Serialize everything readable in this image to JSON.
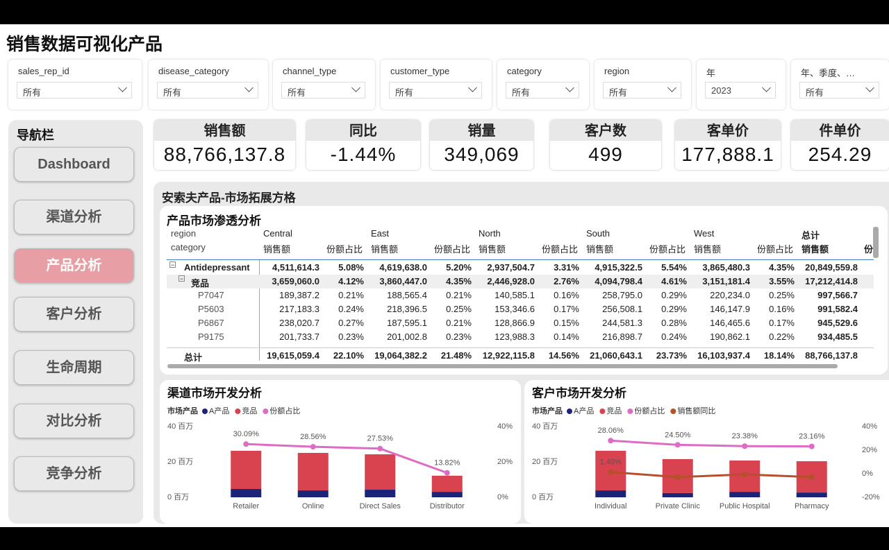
{
  "header": {
    "title": "销售数据可视化产品"
  },
  "filters": [
    {
      "label": "sales_rep_id",
      "value": "所有"
    },
    {
      "label": "disease_category",
      "value": "所有"
    },
    {
      "label": "channel_type",
      "value": "所有"
    },
    {
      "label": "customer_type",
      "value": "所有"
    },
    {
      "label": "category",
      "value": "所有"
    },
    {
      "label": "region",
      "value": "所有"
    },
    {
      "label": "年",
      "value": "2023"
    },
    {
      "label": "年、季度、…",
      "value": "所有"
    }
  ],
  "nav": {
    "title": "导航栏",
    "items": [
      "Dashboard",
      "渠道分析",
      "产品分析",
      "客户分析",
      "生命周期",
      "对比分析",
      "竞争分析"
    ],
    "active": "产品分析"
  },
  "kpis": [
    {
      "label": "销售额",
      "value": "88,766,137.8"
    },
    {
      "label": "同比",
      "value": "-1.44%"
    },
    {
      "label": "销量",
      "value": "349,069"
    },
    {
      "label": "客户数",
      "value": "499"
    },
    {
      "label": "客单价",
      "value": "177,888.1"
    },
    {
      "label": "件单价",
      "value": "254.29"
    }
  ],
  "section": {
    "title": "安索夫产品-市场拓展方格"
  },
  "table": {
    "title": "产品市场渗透分析",
    "row_header": "region",
    "col_header": "category",
    "regions": [
      "Central",
      "East",
      "North",
      "South",
      "West",
      "总计"
    ],
    "measures": [
      "销售额",
      "份额占比"
    ],
    "cut_header": "份",
    "rows": [
      {
        "label": "Antidepressant",
        "values": [
          "4,511,614.3",
          "5.08%",
          "4,619,638.0",
          "5.20%",
          "2,937,504.7",
          "3.31%",
          "4,915,322.5",
          "5.54%",
          "3,865,480.3",
          "4.35%",
          "20,849,559.8"
        ]
      },
      {
        "label": "竞品",
        "values": [
          "3,659,060.0",
          "4.12%",
          "3,860,447.0",
          "4.35%",
          "2,446,928.0",
          "2.76%",
          "4,094,798.4",
          "4.61%",
          "3,151,181.4",
          "3.55%",
          "17,212,414.8"
        ]
      },
      {
        "label": "P7047",
        "values": [
          "189,387.2",
          "0.21%",
          "188,565.4",
          "0.21%",
          "140,585.1",
          "0.16%",
          "258,795.0",
          "0.29%",
          "220,234.0",
          "0.25%",
          "997,566.7"
        ]
      },
      {
        "label": "P5603",
        "values": [
          "217,183.3",
          "0.24%",
          "218,396.5",
          "0.25%",
          "153,346.6",
          "0.17%",
          "256,508.1",
          "0.29%",
          "146,147.9",
          "0.16%",
          "991,582.4"
        ]
      },
      {
        "label": "P6867",
        "values": [
          "238,020.7",
          "0.27%",
          "187,595.1",
          "0.21%",
          "128,866.9",
          "0.15%",
          "244,581.3",
          "0.28%",
          "146,465.6",
          "0.17%",
          "945,529.6"
        ]
      },
      {
        "label": "P9175",
        "values": [
          "201,733.7",
          "0.23%",
          "201,002.8",
          "0.23%",
          "123,988.3",
          "0.14%",
          "216,898.7",
          "0.24%",
          "190,862.1",
          "0.22%",
          "934,485.5"
        ]
      }
    ],
    "total": {
      "label": "总计",
      "values": [
        "19,615,059.4",
        "22.10%",
        "19,064,382.2",
        "21.48%",
        "12,922,115.8",
        "14.56%",
        "21,060,643.1",
        "23.73%",
        "16,103,937.4",
        "18.14%",
        "88,766,137.8"
      ]
    }
  },
  "chart_data": [
    {
      "type": "bar",
      "stacked": true,
      "title": "渠道市场开发分析",
      "legend_title": "市场产品",
      "categories": [
        "Retailer",
        "Online",
        "Direct Sales",
        "Distributor"
      ],
      "series": [
        {
          "name": "A产品",
          "color": "#1b2478",
          "values": [
            4.7,
            3.9,
            4.3,
            3.1
          ]
        },
        {
          "name": "竞品",
          "color": "#d8434f",
          "values": [
            21.6,
            21.2,
            20.0,
            9.1
          ]
        },
        {
          "name": "份额占比",
          "color": "#de6cc4",
          "type": "line",
          "axis": "y2",
          "values": [
            30.09,
            28.56,
            27.53,
            13.82
          ],
          "value_labels": [
            "30.09%",
            "28.56%",
            "27.53%",
            "13.82%"
          ]
        }
      ],
      "ylim": [
        0,
        40
      ],
      "yticks": [
        {
          "value": 0,
          "label": "0 百万"
        },
        {
          "value": 20,
          "label": "20 百万"
        },
        {
          "value": 40,
          "label": "40 百万"
        }
      ],
      "y2lim": [
        0,
        40
      ],
      "y2ticks": [
        {
          "value": 0,
          "label": "0%"
        },
        {
          "value": 20,
          "label": "20%"
        },
        {
          "value": 40,
          "label": "40%"
        }
      ]
    },
    {
      "type": "bar",
      "stacked": true,
      "title": "客户市场开发分析",
      "legend_title": "市场产品",
      "categories": [
        "Individual",
        "Private Clinic",
        "Public Hospital",
        "Pharmacy"
      ],
      "series": [
        {
          "name": "A产品",
          "color": "#1b2478",
          "values": [
            3.9,
            2.4,
            3.1,
            2.7
          ]
        },
        {
          "name": "竞品",
          "color": "#d8434f",
          "values": [
            22.4,
            19.2,
            17.7,
            17.7
          ]
        },
        {
          "name": "份额占比",
          "color": "#de6cc4",
          "type": "line",
          "axis": "y2",
          "values": [
            28.06,
            24.5,
            23.38,
            23.16
          ],
          "value_labels": [
            "28.06%",
            "24.50%",
            "23.38%",
            "23.16%"
          ]
        },
        {
          "name": "销售额同比",
          "color": "#b5502a",
          "type": "line",
          "axis": "y2",
          "values": [
            1.4,
            -2.9,
            -0.6,
            -2.9
          ],
          "value_labels": [
            "1.40%",
            null,
            null,
            null
          ]
        }
      ],
      "ylim": [
        0,
        40
      ],
      "yticks": [
        {
          "value": 0,
          "label": "0 百万"
        },
        {
          "value": 20,
          "label": "20 百万"
        },
        {
          "value": 40,
          "label": "40 百万"
        }
      ],
      "y2lim": [
        -20,
        40
      ],
      "y2ticks": [
        {
          "value": -20,
          "label": "-20%"
        },
        {
          "value": 0,
          "label": "0%"
        },
        {
          "value": 20,
          "label": "20%"
        },
        {
          "value": 40,
          "label": "40%"
        }
      ]
    }
  ]
}
